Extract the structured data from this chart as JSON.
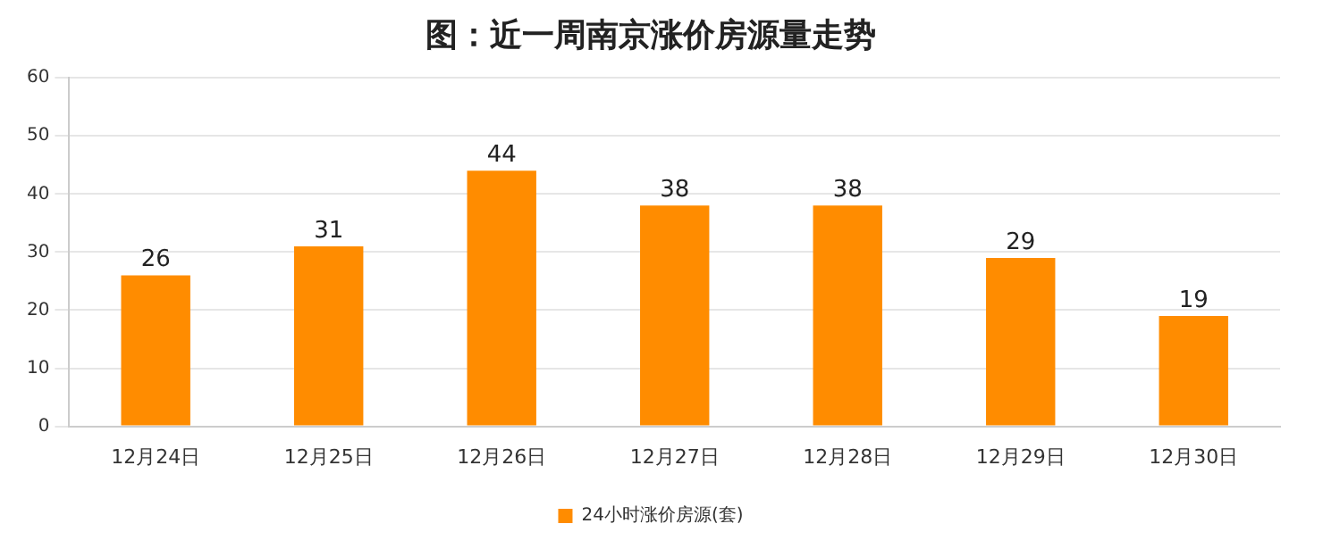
{
  "chart_data": {
    "type": "bar",
    "title": "图：近一周南京涨价房源量走势",
    "categories": [
      "12月24日",
      "12月25日",
      "12月26日",
      "12月27日",
      "12月28日",
      "12月29日",
      "12月30日"
    ],
    "series": [
      {
        "name": "24小时涨价房源(套)",
        "color": "#ff8c00",
        "values": [
          26,
          31,
          44,
          38,
          38,
          29,
          19
        ]
      }
    ],
    "ylim": [
      0,
      60
    ],
    "yticks": [
      0,
      10,
      20,
      30,
      40,
      50,
      60
    ],
    "grid": "y",
    "legend": "bottom",
    "data_labels": true
  }
}
